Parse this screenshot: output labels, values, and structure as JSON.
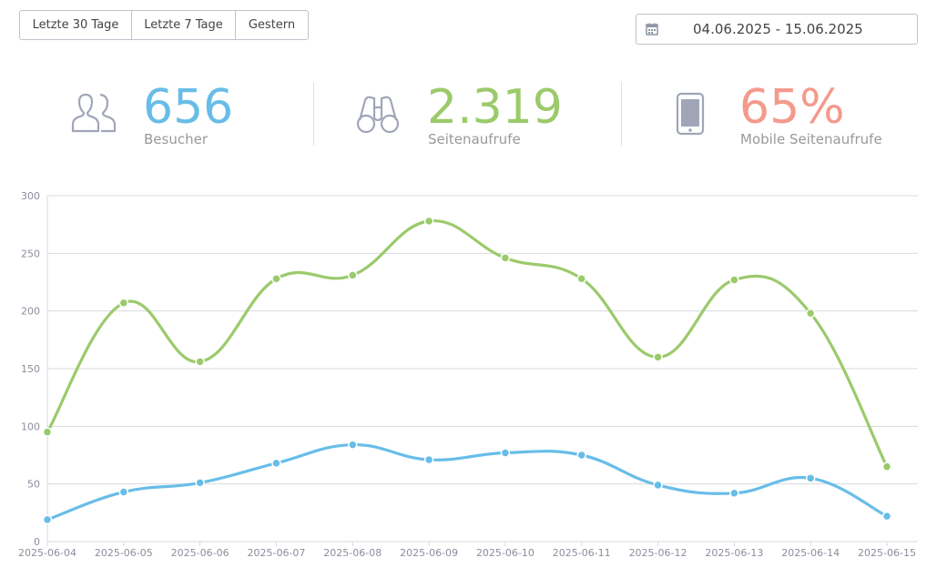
{
  "range_buttons": [
    {
      "label": "Letzte 30 Tage"
    },
    {
      "label": "Letzte 7 Tage"
    },
    {
      "label": "Gestern"
    }
  ],
  "date_range": {
    "value": "04.06.2025 - 15.06.2025",
    "icon": "calendar-icon"
  },
  "stats": [
    {
      "value": "656",
      "label": "Besucher",
      "color": "#68bde8",
      "icon": "visitors-icon"
    },
    {
      "value": "2.319",
      "label": "Seitenaufrufe",
      "color": "#9bca6b",
      "icon": "binoculars-icon"
    },
    {
      "value": "65%",
      "label": "Mobile Seitenaufrufe",
      "color": "#f49a8c",
      "icon": "mobile-phone-icon"
    }
  ],
  "chart_data": {
    "type": "line",
    "x": [
      "2025-06-04",
      "2025-06-05",
      "2025-06-06",
      "2025-06-07",
      "2025-06-08",
      "2025-06-09",
      "2025-06-10",
      "2025-06-11",
      "2025-06-12",
      "2025-06-13",
      "2025-06-14",
      "2025-06-15"
    ],
    "series": [
      {
        "color": "#9bca6b",
        "values": [
          95,
          207,
          156,
          228,
          231,
          278,
          246,
          228,
          160,
          227,
          198,
          65
        ]
      },
      {
        "color": "#68bde8",
        "values": [
          19,
          43,
          51,
          68,
          84,
          71,
          77,
          75,
          49,
          42,
          55,
          22
        ]
      }
    ],
    "yticks": [
      "0",
      "50",
      "100",
      "150",
      "200",
      "250",
      "300"
    ],
    "ylim": [
      0,
      300
    ],
    "grid": true,
    "legend": "none"
  }
}
